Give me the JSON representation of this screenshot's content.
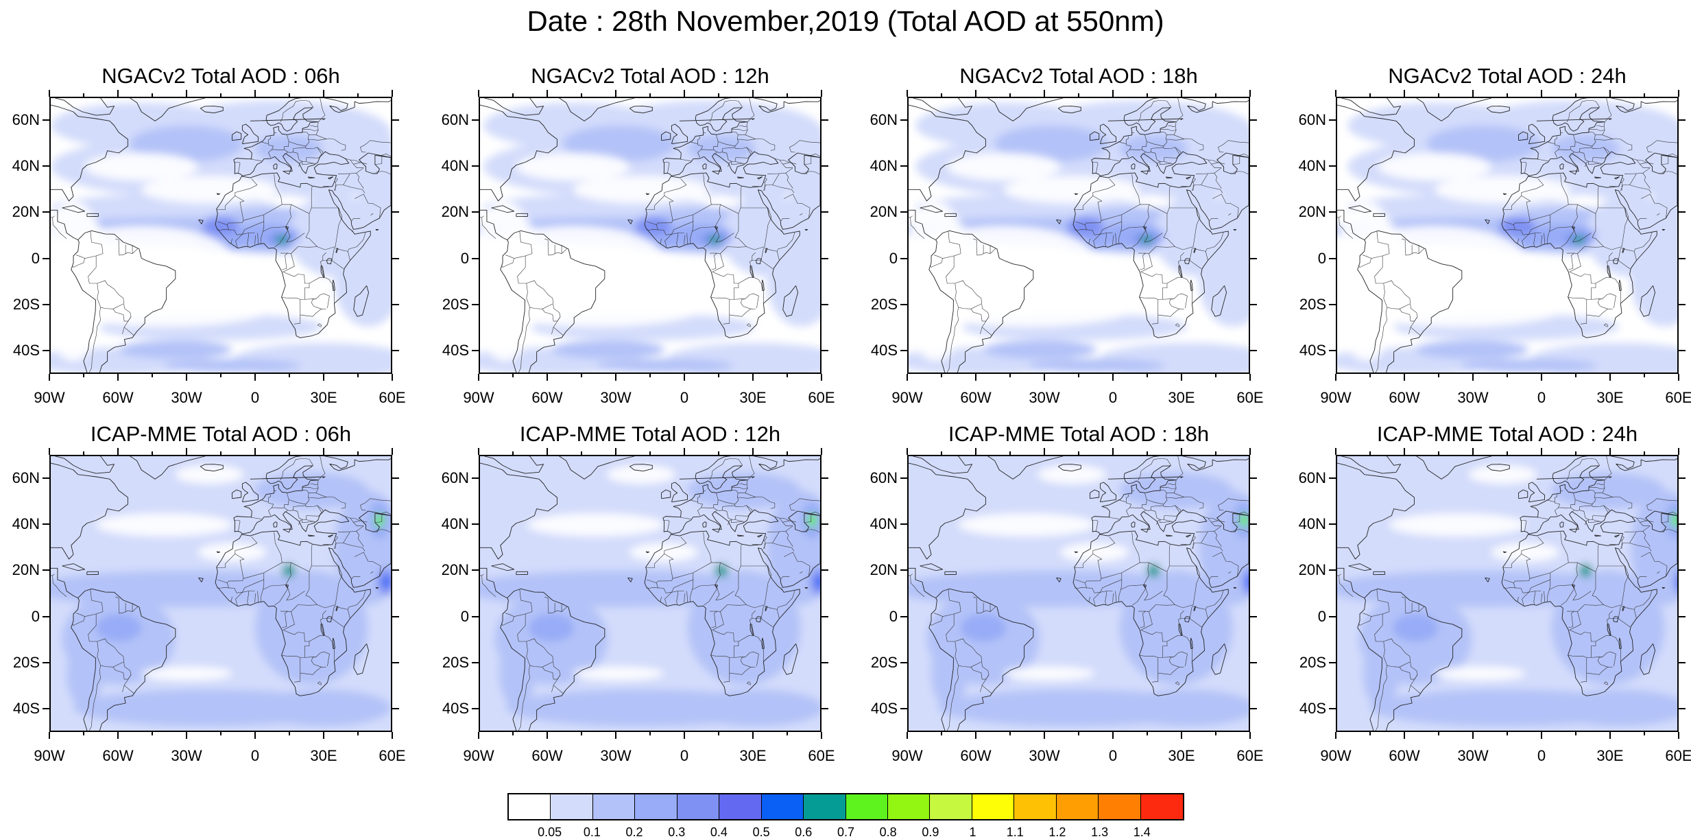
{
  "title": "Date : 28th November,2019 (Total AOD at 550nm)",
  "panels": [
    {
      "title": "NGACv2 Total AOD : 06h",
      "model": "ngac",
      "hour": 6
    },
    {
      "title": "NGACv2 Total AOD : 12h",
      "model": "ngac",
      "hour": 12
    },
    {
      "title": "NGACv2 Total AOD : 18h",
      "model": "ngac",
      "hour": 18
    },
    {
      "title": "NGACv2 Total AOD : 24h",
      "model": "ngac",
      "hour": 24
    },
    {
      "title": "ICAP-MME Total AOD : 06h",
      "model": "icap",
      "hour": 6
    },
    {
      "title": "ICAP-MME Total AOD : 12h",
      "model": "icap",
      "hour": 12
    },
    {
      "title": "ICAP-MME Total AOD : 18h",
      "model": "icap",
      "hour": 18
    },
    {
      "title": "ICAP-MME Total AOD : 24h",
      "model": "icap",
      "hour": 24
    }
  ],
  "lat_ticks": [
    "60N",
    "40N",
    "20N",
    "0",
    "20S",
    "40S"
  ],
  "lon_ticks": [
    "90W",
    "60W",
    "30W",
    "0",
    "30E",
    "60E"
  ],
  "lat_range": [
    -50,
    70
  ],
  "lon_range": [
    -90,
    60
  ],
  "colorbar": {
    "labels": [
      "0.05",
      "0.1",
      "0.2",
      "0.3",
      "0.4",
      "0.5",
      "0.6",
      "0.7",
      "0.8",
      "0.9",
      "1",
      "1.1",
      "1.2",
      "1.3",
      "1.4"
    ],
    "colors": [
      "#ffffff",
      "#d3dcfb",
      "#b3c2f8",
      "#98acf7",
      "#7f91f3",
      "#6369f0",
      "#0a5ff5",
      "#069c96",
      "#5ef21e",
      "#93f512",
      "#c5f83e",
      "#fefe06",
      "#fec104",
      "#fe9e03",
      "#fe7f02",
      "#fe2a0f"
    ]
  }
}
